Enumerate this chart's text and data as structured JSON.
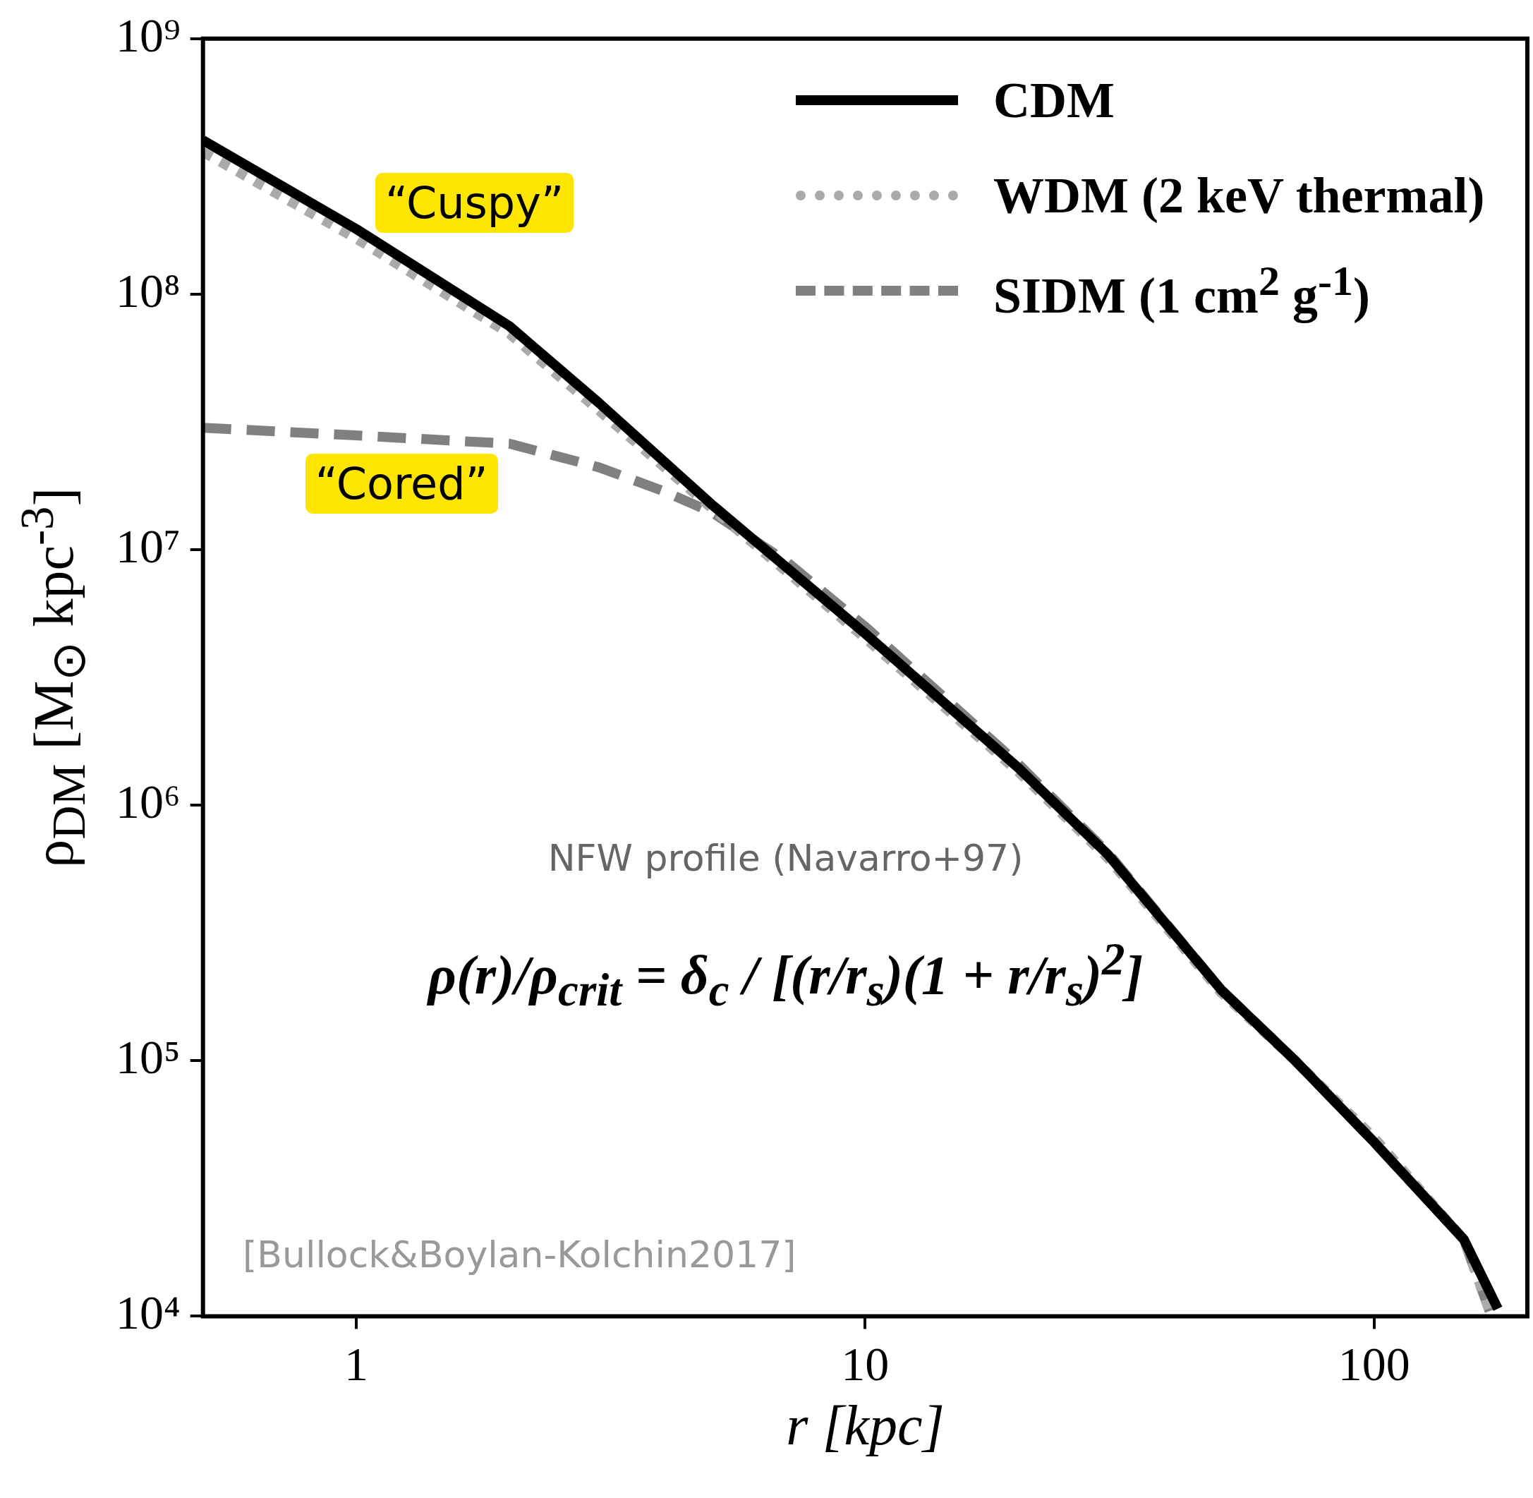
{
  "chart_data": {
    "type": "line",
    "log": "xy",
    "marker": "none",
    "legend": "top right",
    "xlabel": "r [kpc]",
    "ylabel": "ρ$_{DM}$ [M$_{⊙}$ kpc$^{-3}$]",
    "xlim": [
      0.5,
      200
    ],
    "xticks": [
      1,
      10,
      100
    ],
    "ylim": [
      10000,
      1000000000
    ],
    "yticks": [
      {
        "value": 10000,
        "label": "10⁴"
      },
      {
        "value": 100000,
        "label": "10⁵"
      },
      {
        "value": 1000000,
        "label": "10⁶"
      },
      {
        "value": 10000000,
        "label": "10⁷"
      },
      {
        "value": 100000000,
        "label": "10⁸"
      },
      {
        "value": 1000000000,
        "label": "10⁹"
      }
    ],
    "series": [
      {
        "name": "CDM",
        "color": "#000000",
        "line_style": "solid",
        "x": [
          0.5,
          1,
          2,
          3,
          5,
          10,
          20,
          30,
          50,
          70,
          100,
          150,
          175
        ],
        "values": [
          400000000,
          180000000,
          75000000,
          37500000,
          15000000,
          4700000,
          1400000,
          640000,
          190000,
          100000,
          48000,
          20000,
          10700
        ]
      },
      {
        "name": "WDM (2 keV thermal)",
        "color": "#aaaaaa",
        "line_style": "dotted",
        "x": [
          0.5,
          1,
          2,
          3,
          5,
          10,
          20,
          30,
          50,
          70,
          100,
          150,
          170
        ],
        "values": [
          360000000,
          165000000,
          70000000,
          35000000,
          14500000,
          4500000,
          1350000,
          620000,
          185000,
          100000,
          50000,
          20000,
          10000
        ]
      },
      {
        "name": "SIDM (1 cm$^{2}$ g$^{-1}$)",
        "color": "#808080",
        "line_style": "dashed",
        "x": [
          0.5,
          1,
          2,
          3,
          4,
          5,
          7,
          10,
          20,
          30,
          50,
          70,
          100,
          150,
          170
        ],
        "values": [
          30000000,
          28000000,
          26000000,
          21000000,
          17000000,
          14000000,
          9000000,
          5000000,
          1450000,
          650000,
          190000,
          100000,
          48000,
          20000,
          10000
        ]
      }
    ],
    "annotations": [
      "“Cuspy”",
      "“Cored”",
      "NFW profile (Navarro+97)",
      "ρ(r)/ρ$_{crit}$ = δ$_{c}$ / [(r/r$_{s}$)(1 + r/r$_{s}$)$^{2}$]",
      "[Bullock&Boylan-Kolchin2017]"
    ]
  }
}
